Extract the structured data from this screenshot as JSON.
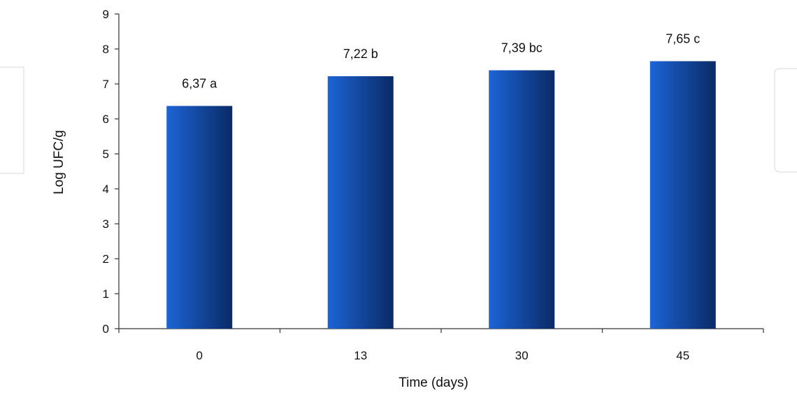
{
  "chart_data": {
    "type": "bar",
    "title": "",
    "xlabel": "Time (days)",
    "ylabel": "Log UFC/g",
    "categories": [
      "0",
      "13",
      "30",
      "45"
    ],
    "values": [
      6.37,
      7.22,
      7.39,
      7.65
    ],
    "data_labels": [
      "6,37 a",
      "7,22 b",
      "7,39 bc",
      "7,65 c"
    ],
    "ylim": [
      0,
      9
    ],
    "yticks": [
      0,
      1,
      2,
      3,
      4,
      5,
      6,
      7,
      8,
      9
    ],
    "grid": false,
    "legend": "none",
    "colors": {
      "bar_light": "#1c64d6",
      "bar_dark": "#0a2a66",
      "axis": "#333333"
    }
  }
}
